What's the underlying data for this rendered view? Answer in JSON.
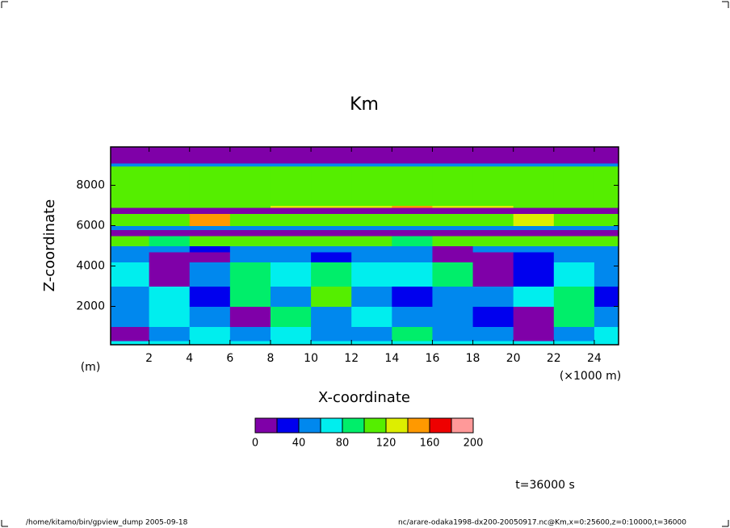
{
  "chart_data": {
    "type": "contourf",
    "title": "Km",
    "xlabel": "X-coordinate",
    "ylabel": "Z-coordinate",
    "x_unit": "(×1000 m)",
    "y_unit": "(m)",
    "time_label": "t=36000 s",
    "footer_left": "/home/kitamo/bin/gpview_dump  2005-09-18",
    "footer_right": "nc/arare-odaka1998-dx200-20050917.nc@Km,x=0:25600,z=0:10000,t=36000",
    "xlim": [
      0.1,
      25.2
    ],
    "ylim": [
      100,
      9900
    ],
    "xticks": [
      2,
      4,
      6,
      8,
      10,
      12,
      14,
      16,
      18,
      20,
      22,
      24
    ],
    "yticks": [
      2000,
      4000,
      6000,
      8000
    ],
    "x_edges": [
      0.1,
      2,
      4,
      6,
      8,
      10,
      12,
      14,
      16,
      18,
      20,
      22,
      24,
      25.2
    ],
    "z_edges": [
      100,
      300,
      1000,
      2000,
      3000,
      4200,
      4700,
      5000,
      5500,
      5800,
      6000,
      6600,
      6900,
      7000,
      8950,
      9100,
      9900
    ],
    "values": [
      [
        70,
        70,
        70,
        70,
        70,
        70,
        70,
        70,
        70,
        70,
        70,
        70,
        70
      ],
      [
        10,
        50,
        70,
        50,
        70,
        50,
        50,
        90,
        50,
        50,
        10,
        50,
        70
      ],
      [
        50,
        70,
        50,
        10,
        90,
        50,
        70,
        50,
        50,
        30,
        10,
        90,
        50
      ],
      [
        50,
        70,
        30,
        90,
        50,
        110,
        50,
        30,
        50,
        50,
        70,
        90,
        30
      ],
      [
        70,
        10,
        50,
        90,
        70,
        90,
        70,
        70,
        90,
        10,
        30,
        70,
        50
      ],
      [
        50,
        10,
        10,
        50,
        50,
        30,
        50,
        50,
        10,
        10,
        30,
        50,
        50
      ],
      [
        50,
        50,
        30,
        50,
        50,
        50,
        50,
        50,
        10,
        50,
        50,
        50,
        50
      ],
      [
        110,
        90,
        110,
        110,
        110,
        110,
        110,
        90,
        110,
        110,
        110,
        110,
        110
      ],
      [
        10,
        10,
        10,
        10,
        10,
        10,
        10,
        10,
        10,
        10,
        10,
        10,
        10
      ],
      [
        50,
        50,
        50,
        50,
        50,
        50,
        50,
        50,
        50,
        50,
        50,
        50,
        50
      ],
      [
        110,
        110,
        150,
        110,
        110,
        110,
        110,
        110,
        110,
        110,
        130,
        110,
        110
      ],
      [
        10,
        10,
        10,
        10,
        10,
        10,
        10,
        10,
        10,
        10,
        10,
        10,
        10
      ],
      [
        110,
        110,
        110,
        110,
        130,
        130,
        130,
        150,
        130,
        130,
        110,
        110,
        110
      ],
      [
        110,
        110,
        110,
        110,
        110,
        110,
        110,
        110,
        110,
        110,
        110,
        110,
        110
      ],
      [
        50,
        50,
        50,
        50,
        50,
        50,
        50,
        50,
        50,
        50,
        50,
        50,
        50
      ],
      [
        10,
        10,
        10,
        10,
        10,
        10,
        10,
        10,
        10,
        10,
        10,
        10,
        10
      ]
    ],
    "levels": [
      0,
      20,
      40,
      60,
      80,
      100,
      120,
      140,
      160,
      180,
      200
    ],
    "colors": [
      "#7f00a8",
      "#0000ee",
      "#0088ee",
      "#00eeee",
      "#00ee6a",
      "#55ee00",
      "#ddee00",
      "#ff9900",
      "#ee0000",
      "#ff9999"
    ],
    "colorbar_ticks": [
      0,
      40,
      80,
      120,
      160,
      200
    ]
  }
}
